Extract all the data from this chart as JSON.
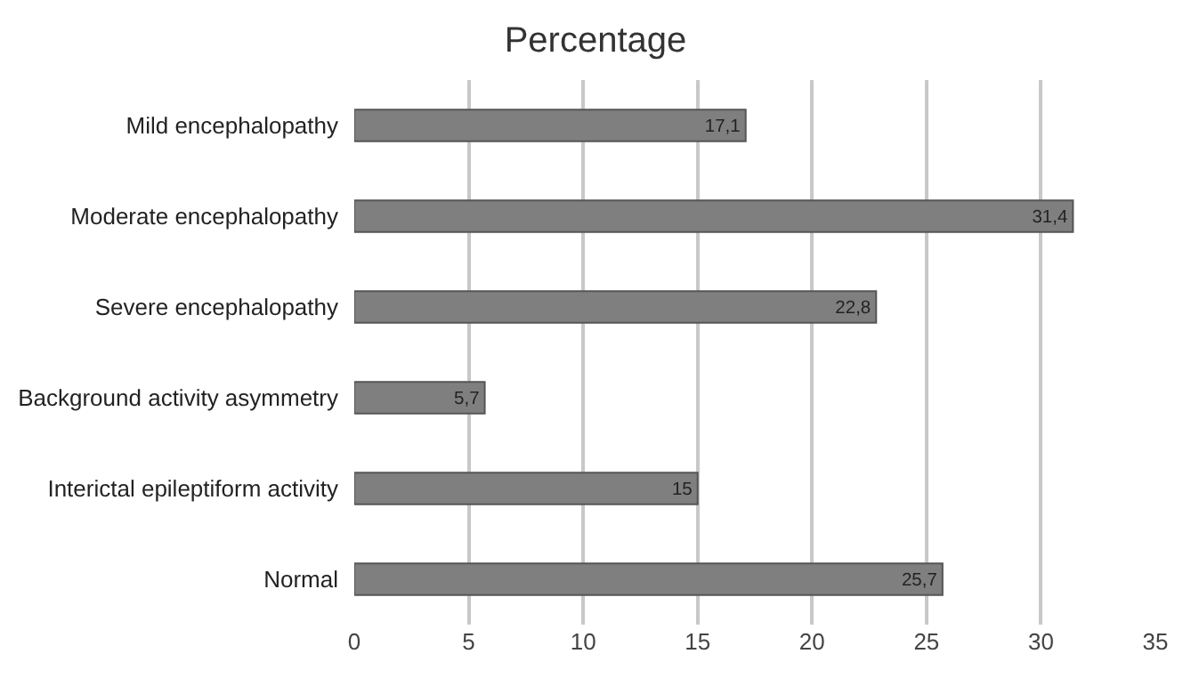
{
  "chart_data": {
    "type": "bar",
    "orientation": "horizontal",
    "title": "Percentage",
    "categories": [
      "Mild encephalopathy",
      "Moderate encephalopathy",
      "Severe encephalopathy",
      "Background activity asymmetry",
      "Interictal epileptiform activity",
      "Normal"
    ],
    "values": [
      17.1,
      31.4,
      22.8,
      5.7,
      15,
      25.7
    ],
    "value_labels": [
      "17,1",
      "31,4",
      "22,8",
      "5,7",
      "15",
      "25,7"
    ],
    "color": "#7f7f7f",
    "xlim": [
      0,
      35
    ],
    "xticks": [
      0,
      5,
      10,
      15,
      20,
      25,
      30,
      35
    ],
    "grid": "x"
  }
}
